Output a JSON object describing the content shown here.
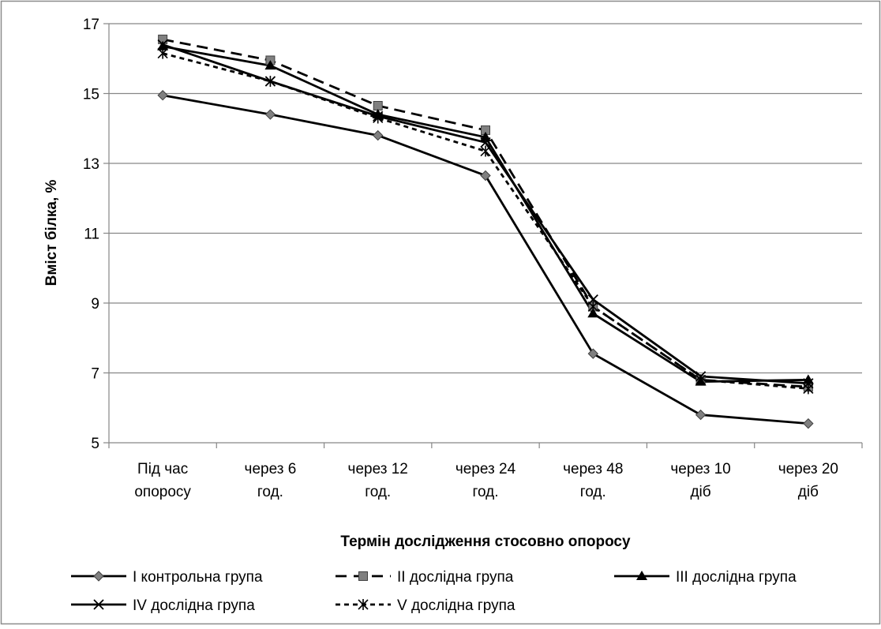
{
  "chart_data": {
    "type": "line",
    "title": "",
    "xlabel": "Термін дослідження стосовно опоросу",
    "ylabel": "Вміст білка, %",
    "ylim": [
      5,
      17
    ],
    "yticks": [
      5,
      7,
      9,
      11,
      13,
      15,
      17
    ],
    "grid": true,
    "legend_position": "bottom",
    "categories": [
      [
        "Під час",
        "опоросу"
      ],
      [
        "через 6",
        "год."
      ],
      [
        "через 12",
        "год."
      ],
      [
        "через 24",
        "год."
      ],
      [
        "через 48",
        "год."
      ],
      [
        "через 10",
        "діб"
      ],
      [
        "через 20",
        "діб"
      ]
    ],
    "series": [
      {
        "name": "I контрольна група",
        "marker": "diamond",
        "dash": "solid",
        "marker_color": "#808080",
        "values": [
          14.95,
          14.4,
          13.8,
          12.65,
          7.55,
          5.8,
          5.55
        ]
      },
      {
        "name": "II дослідна група",
        "marker": "square",
        "dash": "dashed",
        "marker_color": "#808080",
        "values": [
          16.55,
          15.95,
          14.65,
          13.95,
          8.9,
          6.8,
          6.6
        ]
      },
      {
        "name": "III дослідна група",
        "marker": "triangle",
        "dash": "solid",
        "marker_color": "#000000",
        "values": [
          16.35,
          15.8,
          14.4,
          13.75,
          8.7,
          6.75,
          6.8
        ]
      },
      {
        "name": "IV дослідна група",
        "marker": "x",
        "dash": "solid",
        "marker_color": "#000000",
        "values": [
          16.4,
          15.35,
          14.35,
          13.6,
          9.1,
          6.9,
          6.7
        ]
      },
      {
        "name": "V дослідна група",
        "marker": "star",
        "dash": "short-dash",
        "marker_color": "#000000",
        "values": [
          16.15,
          15.35,
          14.3,
          13.35,
          8.9,
          6.8,
          6.55
        ]
      }
    ],
    "line_color": "#000000"
  }
}
